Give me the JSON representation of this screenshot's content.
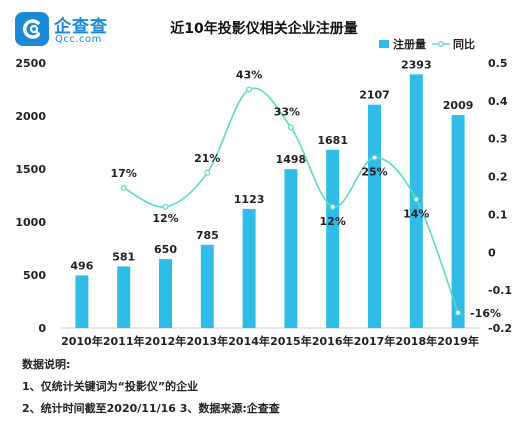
{
  "logo": {
    "name": "企查查",
    "domain": "Qcc.com",
    "accent": "#1b8ad6"
  },
  "chart_data": {
    "type": "bar",
    "title": "近10年投影仪相关企业注册量",
    "categories": [
      "2010年",
      "2011年",
      "2012年",
      "2013年",
      "2014年",
      "2015年",
      "2016年",
      "2017年",
      "2018年",
      "2019年"
    ],
    "series": [
      {
        "name": "注册量",
        "type": "bar",
        "axis": "left",
        "color": "#2fbde8",
        "values": [
          496,
          581,
          650,
          785,
          1123,
          1498,
          1681,
          2107,
          2393,
          2009
        ],
        "labels": [
          "496",
          "581",
          "650",
          "785",
          "1123",
          "1498",
          "1681",
          "2107",
          "2393",
          "2009"
        ]
      },
      {
        "name": "同比",
        "type": "line",
        "smooth": true,
        "axis": "right",
        "color": "#5fd8c9",
        "values": [
          null,
          0.17,
          0.12,
          0.21,
          0.43,
          0.33,
          0.12,
          0.25,
          0.14,
          -0.16
        ],
        "labels": [
          null,
          "17%",
          "12%",
          "21%",
          "43%",
          "33%",
          "12%",
          "25%",
          "14%",
          "-16%"
        ]
      }
    ],
    "y_left": {
      "min": 0,
      "max": 2500,
      "ticks": [
        0,
        500,
        1000,
        1500,
        2000,
        2500
      ]
    },
    "y_right": {
      "min": -0.2,
      "max": 0.5,
      "ticks": [
        -0.2,
        -0.1,
        0,
        0.1,
        0.2,
        0.3,
        0.4,
        0.5
      ],
      "tick_labels": [
        "-0.2",
        "-0.1",
        "0",
        "0.1",
        "0.2",
        "0.3",
        "0.4",
        "0.5"
      ]
    },
    "legend_position": "top-right",
    "grid": false
  },
  "notes": {
    "heading": "数据说明:",
    "line1": "1、仅统计关键词为“投影仪”的企业",
    "line2": "2、统计时间截至2020/11/16  3、数据来源:企查查"
  }
}
